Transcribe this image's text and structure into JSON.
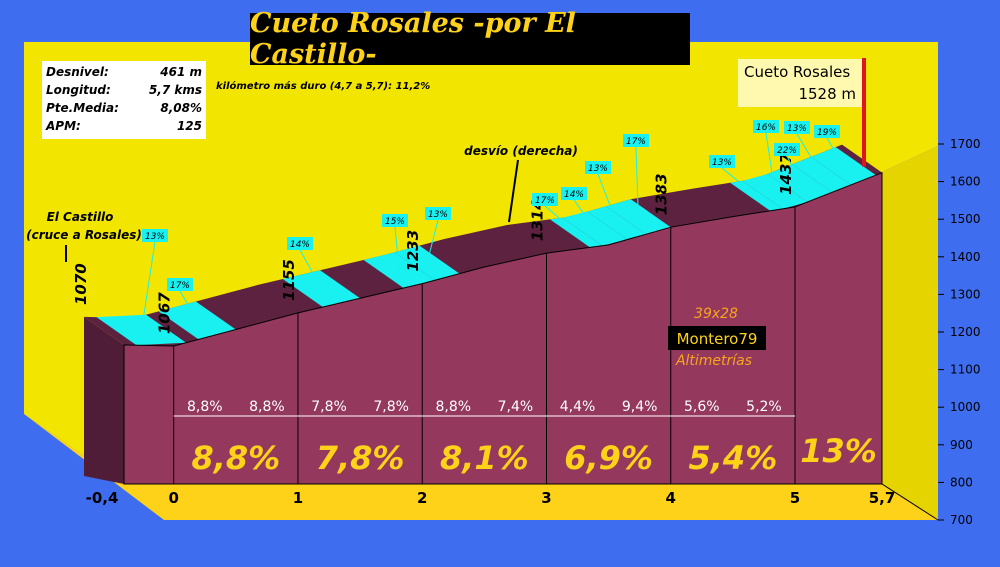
{
  "title": "Cueto Rosales -por El Castillo-",
  "stats": [
    {
      "label": "Desnivel:",
      "value": "461 m"
    },
    {
      "label": "Longitud:",
      "value": "5,7 kms"
    },
    {
      "label": "Pte.Media:",
      "value": "8,08%"
    },
    {
      "label": "APM:",
      "value": "125"
    }
  ],
  "hardest_km": "kilómetro más duro (4,7 a 5,7): 11,2%",
  "summit": {
    "name": "Cueto Rosales",
    "altitude": "1528 m"
  },
  "start_label_line1": "El Castillo",
  "start_label_line2": "(cruce a Rosales)",
  "turn_label": "desvío (derecha)",
  "credits": {
    "ratio": "39x28",
    "author": "Montero79",
    "org": "Altimetrías"
  },
  "colors": {
    "background": "#3f6df0",
    "floor": "#ffd21a",
    "wall": "#f2e600",
    "profile_side": "#94385e",
    "profile_top": "#5e2241",
    "steep": "#19f0f0",
    "summit_pole": "#e0141e",
    "text_yellow": "#ffd21a",
    "text_orange": "#f7a51c"
  },
  "chart_data": {
    "type": "area",
    "x": [
      -0.4,
      0,
      0.5,
      1,
      1.5,
      2,
      2.5,
      3,
      3.5,
      4,
      4.5,
      5,
      5.7
    ],
    "series": [
      {
        "values": [
          1070,
          1067,
          1111,
          1155,
          1194,
          1233,
          1277,
          1314,
          1336,
          1383,
          1411,
          1437,
          1528
        ]
      }
    ],
    "x_ticks": [
      {
        "x": -0.4,
        "label": "-0,4"
      },
      {
        "x": 0,
        "label": "0"
      },
      {
        "x": 1,
        "label": "1"
      },
      {
        "x": 2,
        "label": "2"
      },
      {
        "x": 3,
        "label": "3"
      },
      {
        "x": 4,
        "label": "4"
      },
      {
        "x": 5,
        "label": "5"
      },
      {
        "x": 5.7,
        "label": "5,7"
      }
    ],
    "y_ticks": [
      700,
      800,
      900,
      1000,
      1100,
      1200,
      1300,
      1400,
      1500,
      1600,
      1700
    ],
    "ylim": [
      700,
      1700
    ],
    "xlim": [
      -0.4,
      5.7
    ],
    "altitude_labels": [
      {
        "x": -0.4,
        "label": "1070"
      },
      {
        "x": 0,
        "label": "1067"
      },
      {
        "x": 1,
        "label": "1155"
      },
      {
        "x": 2,
        "label": "1233"
      },
      {
        "x": 3,
        "label": "1314"
      },
      {
        "x": 4,
        "label": "1383"
      },
      {
        "x": 5,
        "label": "1437"
      }
    ],
    "half_km_gradients": [
      "8,8%",
      "8,8%",
      "7,8%",
      "7,8%",
      "8,8%",
      "7,4%",
      "4,4%",
      "9,4%",
      "5,6%",
      "5,2%"
    ],
    "km_gradients": [
      "8,8%",
      "7,8%",
      "8,1%",
      "6,9%",
      "5,4%",
      "13%"
    ],
    "steep_ramps": [
      {
        "x0": -0.3,
        "x1": 0.1,
        "label": "13%"
      },
      {
        "x0": 0.2,
        "x1": 0.5,
        "label": "17%"
      },
      {
        "x0": 1.2,
        "x1": 1.5,
        "label": "14%"
      },
      {
        "x0": 1.85,
        "x1": 2.1,
        "label": "15%"
      },
      {
        "x0": 2.1,
        "x1": 2.3,
        "label": "13%"
      },
      {
        "x0": 3.35,
        "x1": 3.45,
        "label": "17%"
      },
      {
        "x0": 3.45,
        "x1": 3.65,
        "label": "14%"
      },
      {
        "x0": 3.65,
        "x1": 3.8,
        "label": "13%"
      },
      {
        "x0": 3.8,
        "x1": 4.0,
        "label": "17%"
      },
      {
        "x0": 4.8,
        "x1": 4.9,
        "label": "13%"
      },
      {
        "x0": 4.9,
        "x1": 5.1,
        "label": "16%"
      },
      {
        "x0": 5.1,
        "x1": 5.3,
        "label": "22%"
      },
      {
        "x0": 5.3,
        "x1": 5.45,
        "label": "13%"
      },
      {
        "x0": 5.45,
        "x1": 5.65,
        "label": "19%"
      }
    ]
  }
}
